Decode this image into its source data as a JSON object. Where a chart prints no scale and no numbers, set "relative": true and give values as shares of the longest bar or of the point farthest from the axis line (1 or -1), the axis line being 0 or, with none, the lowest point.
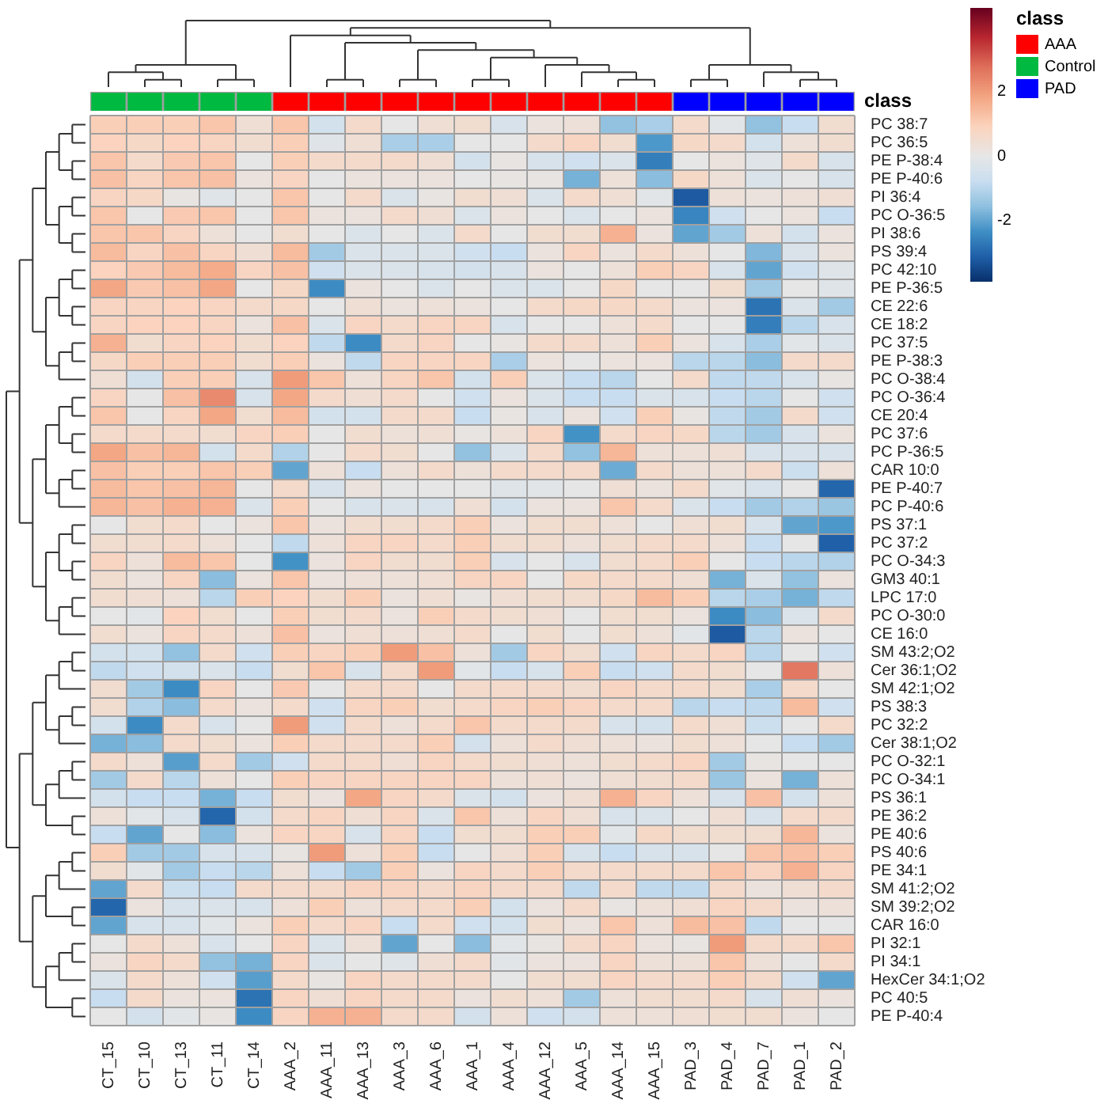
{
  "chart_data": [
    {
      "type": "bar",
      "stacked": true,
      "relative": true,
      "tick_labels": false,
      "ylabel": "class",
      "legend_title": "class",
      "legend": "top right",
      "categories": [
        null,
        null,
        null,
        null,
        null,
        null,
        null,
        null,
        null,
        null,
        null,
        null,
        null,
        null,
        null,
        null,
        null,
        null,
        null,
        null,
        null
      ],
      "series": [
        {
          "name": "AAA",
          "color": "#ff0000",
          "values": [
            null,
            null,
            null,
            null,
            null,
            1,
            1,
            1,
            1,
            1,
            1,
            1,
            1,
            1,
            1,
            1,
            null,
            null,
            null,
            null,
            null
          ]
        },
        {
          "name": "Control",
          "color": "#00b940",
          "values": [
            1,
            1,
            1,
            1,
            1,
            null,
            null,
            null,
            null,
            null,
            null,
            null,
            null,
            null,
            null,
            null,
            null,
            null,
            null,
            null,
            null
          ]
        },
        {
          "name": "PAD",
          "color": "#0000ff",
          "values": [
            null,
            null,
            null,
            null,
            null,
            null,
            null,
            null,
            null,
            null,
            null,
            null,
            null,
            null,
            null,
            null,
            1,
            1,
            1,
            1,
            1
          ]
        }
      ]
    },
    {
      "type": "heatmap",
      "categories": [
        "CT_15",
        "CT_10",
        "CT_13",
        "CT_11",
        "CT_14",
        "AAA_2",
        "AAA_11",
        "AAA_13",
        "AAA_3",
        "AAA_6",
        "AAA_1",
        "AAA_4",
        "AAA_12",
        "AAA_5",
        "AAA_14",
        "AAA_15",
        "PAD_3",
        "PAD_4",
        "PAD_7",
        "PAD_1",
        "PAD_2"
      ],
      "y_categories": [
        "PC 38:7",
        "PC 36:5",
        "PE P-38:4",
        "PE P-40:6",
        "PI 36:4",
        "PC O-36:5",
        "PI 38:6",
        "PS 39:4",
        "PC 42:10",
        "PE P-36:5",
        "CE 22:6",
        "CE 18:2",
        "PC 37:5",
        "PE P-38:3",
        "PC O-38:4",
        "PC O-36:4",
        "CE 20:4",
        "PC 37:6",
        "PC P-36:5",
        "CAR 10:0",
        "PE P-40:7",
        "PC P-40:6",
        "PS 37:1",
        "PC 37:2",
        "PC O-34:3",
        "GM3 40:1",
        "LPC 17:0",
        "PC O-30:0",
        "CE 16:0",
        "SM 43:2;O2",
        "Cer 36:1;O2",
        "SM 42:1;O2",
        "PS 38:3",
        "PC 32:2",
        "Cer 38:1;O2",
        "PC O-32:1",
        "PC O-34:1",
        "PS 36:1",
        "PE 36:2",
        "PE 40:6",
        "PS 40:6",
        "PE 34:1",
        "SM 41:2;O2",
        "SM 39:2;O2",
        "CAR 16:0",
        "PI 32:1",
        "PI 34:1",
        "HexCer 34:1;O2",
        "PC 40:5",
        "PE P-40:4"
      ],
      "cells": [
        [
          1,
          1,
          1,
          1.2,
          0.4,
          1.2,
          -0.5,
          0.6,
          0,
          0.4,
          0.5,
          -0.4,
          0.2,
          0.3,
          -1.5,
          -1.2,
          0.6,
          -0.1,
          -1.5,
          -0.8,
          0.5
        ],
        [
          0.9,
          0.7,
          0.9,
          0.8,
          0.5,
          1,
          -0.2,
          0.4,
          -1.2,
          -1.2,
          0,
          0,
          0.6,
          0.8,
          0.5,
          -2.2,
          0.7,
          0.6,
          -0.5,
          0.3,
          0.5
        ],
        [
          1.2,
          0.6,
          1.1,
          1.2,
          0,
          1,
          0.6,
          0.6,
          0.6,
          0.4,
          -0.5,
          0.1,
          -0.4,
          -0.6,
          -0.3,
          -2.6,
          0,
          0.2,
          -0.2,
          0.6,
          -0.4
        ],
        [
          1.3,
          0.8,
          1.2,
          1.3,
          0.2,
          0.8,
          0,
          0.2,
          0.2,
          0.2,
          0,
          0.1,
          0.1,
          -1.8,
          0.3,
          -1.6,
          0.7,
          0.3,
          -0.3,
          0,
          -0.4
        ],
        [
          0.8,
          0.7,
          0.1,
          -0.2,
          0,
          1.2,
          0,
          0.6,
          -0.3,
          0.1,
          0.5,
          0.4,
          -0.3,
          0.6,
          0.4,
          -0.1,
          -3.2,
          0.3,
          0.2,
          0.3,
          0.4
        ],
        [
          1.2,
          0,
          1.1,
          1.2,
          0,
          1.2,
          0.2,
          0.2,
          0.6,
          0.4,
          -0.3,
          0.2,
          0,
          -0.3,
          0,
          0.2,
          -2.5,
          -0.6,
          0,
          0.2,
          -0.8
        ],
        [
          1.2,
          1.2,
          0.8,
          0.3,
          0,
          0.5,
          0,
          -0.3,
          0,
          -0.3,
          0.6,
          0,
          0.5,
          0.5,
          1.6,
          0.2,
          -2,
          -1.3,
          0.3,
          -0.5,
          0.2
        ],
        [
          1.4,
          0.8,
          1.3,
          0.8,
          0.4,
          1.4,
          -1.3,
          -0.3,
          -0.3,
          -0.3,
          -0.6,
          -0.8,
          0.2,
          0.8,
          0.2,
          0.6,
          0.3,
          0,
          -1.7,
          -0.3,
          0.2
        ],
        [
          0.9,
          1.1,
          1.4,
          1.7,
          0.8,
          1.3,
          -0.6,
          -0.3,
          -0.3,
          -0.4,
          -0.5,
          -0.4,
          0.2,
          0,
          0.3,
          1,
          0.8,
          -0.4,
          -2,
          -0.6,
          -0.2
        ],
        [
          1.8,
          1.1,
          1.3,
          1.8,
          0,
          0.7,
          -2.4,
          0.2,
          0,
          -0.3,
          0,
          -0.3,
          -0.3,
          0,
          0.7,
          0,
          0,
          0.5,
          -1.3,
          0,
          -0.2
        ],
        [
          0.8,
          0.8,
          0.9,
          0.8,
          0.6,
          0.7,
          0,
          0.4,
          0.2,
          0.3,
          0.2,
          0,
          0.6,
          0.7,
          0.7,
          0.6,
          0.2,
          0.2,
          -2.8,
          -0.3,
          -1.3
        ],
        [
          0.8,
          0.9,
          0.9,
          0.8,
          0.2,
          1.3,
          -0.3,
          0.8,
          0.6,
          0.8,
          0.8,
          -0.4,
          0,
          0,
          0.3,
          0.6,
          0,
          0,
          -2.6,
          -1,
          -0.4
        ],
        [
          1.6,
          0.5,
          0.8,
          0.9,
          0.5,
          0.9,
          -0.9,
          -2.4,
          0.6,
          0.8,
          0,
          0.1,
          0.6,
          0.6,
          0.3,
          1,
          0.2,
          -0.4,
          -1.2,
          -0.1,
          -0.3
        ],
        [
          0.7,
          1,
          1,
          1,
          0.5,
          1,
          0.2,
          -0.9,
          0.8,
          0.8,
          0.8,
          -1.2,
          0.2,
          0,
          0.2,
          0.2,
          -1,
          -1,
          -1.6,
          0.6,
          0.6
        ],
        [
          0.4,
          -0.5,
          1,
          1,
          -0.4,
          2,
          1.2,
          0.3,
          0.8,
          1.2,
          -0.5,
          1,
          -0.3,
          -0.8,
          -1,
          0,
          0.6,
          -0.9,
          -0.9,
          -0.4,
          0.1
        ],
        [
          0.8,
          0,
          1.3,
          2.3,
          -0.4,
          1.8,
          0.6,
          0.4,
          0.6,
          0,
          -0.6,
          0.2,
          -0.3,
          -0.8,
          -0.8,
          -0.3,
          -0.4,
          -0.8,
          -1,
          0,
          -0.6
        ],
        [
          1.2,
          0,
          0.8,
          1.8,
          0.5,
          1.4,
          -0.5,
          -0.5,
          0.6,
          0.6,
          -0.8,
          0.1,
          -0.4,
          0.2,
          -0.6,
          1,
          0.1,
          -0.9,
          -1.3,
          0.6,
          -0.6
        ],
        [
          0.6,
          0.6,
          0.6,
          0.5,
          0.8,
          1,
          0,
          0.5,
          0.3,
          0.4,
          0.1,
          0.3,
          0.8,
          -2.3,
          0.6,
          0.8,
          0.7,
          -1,
          -1.3,
          -0.4,
          0.2
        ],
        [
          1.8,
          1.3,
          1.5,
          -0.5,
          0.6,
          -1.1,
          0,
          0.6,
          0.5,
          0,
          -1.5,
          -0.3,
          0.6,
          -1.5,
          1.5,
          0.3,
          0.3,
          0.4,
          -0.4,
          -0.4,
          -0.4
        ],
        [
          1.3,
          1,
          1,
          1.2,
          1,
          -2,
          0.3,
          -0.8,
          0.3,
          0.6,
          0.3,
          0.6,
          0.6,
          0.6,
          -1.9,
          0.6,
          0.3,
          0.3,
          0.6,
          -0.7,
          0.3
        ],
        [
          1.4,
          1.2,
          1.3,
          1.5,
          0,
          0.6,
          -0.4,
          0.2,
          0,
          0,
          0,
          -0.2,
          -0.1,
          0,
          0.4,
          0.2,
          0.6,
          -0.1,
          -0.4,
          0,
          -3
        ],
        [
          1.5,
          1.3,
          1.6,
          1.6,
          -0.3,
          1,
          0,
          -0.4,
          -0.3,
          -0.4,
          0.4,
          -0.5,
          0.2,
          0.2,
          1.2,
          0.6,
          -0.3,
          -0.8,
          -1.3,
          -1.1,
          -1.4
        ],
        [
          0,
          0.5,
          0.6,
          0,
          0.2,
          1.2,
          0.2,
          0.5,
          0.5,
          0.6,
          1,
          0.2,
          0.5,
          0.5,
          0.3,
          0,
          0.4,
          0.5,
          -0.4,
          -2,
          -2.2
        ],
        [
          0.5,
          0.5,
          0.6,
          0.3,
          0,
          -0.9,
          0.3,
          0.8,
          0.8,
          0.6,
          1,
          0.5,
          0.5,
          0.3,
          0.5,
          0.6,
          0.6,
          0.3,
          -0.8,
          0,
          -3.1
        ],
        [
          0.8,
          0.3,
          1.4,
          1.2,
          0,
          -2.3,
          0.2,
          0.8,
          0.5,
          0.5,
          1,
          -0.4,
          0,
          -0.4,
          0.5,
          0.6,
          1,
          0,
          -0.8,
          -1,
          -1.1
        ],
        [
          0.5,
          0.2,
          0.8,
          -1.6,
          0.2,
          1.2,
          0.2,
          0.3,
          0.3,
          0.4,
          0.8,
          0.8,
          0,
          0.7,
          0.6,
          0.6,
          0.4,
          -1.8,
          -0.3,
          -1.5,
          0.2
        ],
        [
          0.5,
          0.4,
          0.3,
          -1,
          1,
          0.9,
          0.5,
          1,
          0.2,
          0.4,
          0.1,
          0.4,
          0.5,
          0.5,
          0.7,
          1.4,
          1,
          -1,
          -1.2,
          -1.8,
          -0.9
        ],
        [
          0,
          -0.1,
          0.9,
          0.5,
          0,
          1,
          0.5,
          0.6,
          0.2,
          1,
          0.6,
          0.5,
          0.4,
          0,
          0.5,
          0.5,
          0.2,
          -2.4,
          -1.6,
          -0.3,
          0.6
        ],
        [
          0.5,
          0.2,
          0.8,
          0.6,
          0.3,
          1.3,
          0.2,
          0.4,
          0.3,
          0.4,
          0.6,
          0,
          0.5,
          0,
          0.5,
          0.3,
          -0.1,
          -3.2,
          -1,
          0.2,
          0
        ],
        [
          -0.5,
          -0.5,
          -1.5,
          0.6,
          -0.6,
          1,
          0.8,
          1,
          2,
          1.3,
          0.3,
          -1.3,
          0.8,
          0.5,
          -0.6,
          0.8,
          0.6,
          0.8,
          -1,
          0,
          -0.6
        ],
        [
          -0.9,
          -0.6,
          -0.5,
          -0.3,
          -0.8,
          0.5,
          1.2,
          -0.4,
          0.6,
          2,
          -0.1,
          -0.8,
          -0.4,
          1,
          -0.8,
          -0.6,
          0.6,
          0.5,
          0,
          2.6,
          0.3
        ],
        [
          0.5,
          -1.3,
          -2.4,
          0.8,
          0,
          1.1,
          0,
          0.6,
          0.6,
          0,
          0.6,
          0.6,
          0.6,
          0.5,
          0.8,
          0.6,
          0.6,
          0.5,
          -1.2,
          0.6,
          0
        ],
        [
          0.5,
          -1.1,
          -1.6,
          0.6,
          0.2,
          0.6,
          -0.6,
          0.8,
          1,
          0.5,
          0.6,
          0.8,
          1,
          0.8,
          0.6,
          0.6,
          -1,
          -0.8,
          -0.9,
          1.4,
          -0.6
        ],
        [
          -0.5,
          -2.4,
          0.6,
          -0.4,
          0,
          2,
          -0.6,
          0.6,
          0.3,
          0.6,
          1.2,
          0.6,
          0.6,
          0.6,
          -0.4,
          -0.5,
          0.6,
          0.4,
          -0.7,
          0,
          0.6
        ],
        [
          -1.8,
          -1.6,
          0.6,
          0.5,
          0.2,
          1,
          0.6,
          0.6,
          0.6,
          1,
          -0.5,
          0.3,
          0.6,
          0.4,
          0.3,
          0.2,
          0.5,
          0.3,
          0,
          -0.8,
          -1.3
        ],
        [
          0.6,
          0.3,
          -2.1,
          0.6,
          -1.3,
          -0.6,
          0.6,
          0.6,
          0.4,
          0.8,
          0.6,
          0.5,
          0.4,
          0.3,
          0.5,
          0.6,
          0.8,
          -1.3,
          0.1,
          0,
          0
        ],
        [
          -1.3,
          0.6,
          -1,
          0.3,
          0,
          1,
          0.8,
          0.8,
          0.8,
          0.8,
          0.8,
          0.3,
          0.4,
          0.2,
          0.4,
          0.5,
          0.6,
          -1.4,
          0.2,
          -1.8,
          0.3
        ],
        [
          -0.5,
          -0.8,
          -0.8,
          -1.8,
          -0.8,
          0.5,
          0.2,
          1.8,
          0.8,
          0.6,
          -0.3,
          -0.5,
          0.2,
          0.4,
          1.6,
          0.8,
          0.3,
          -0.4,
          1.3,
          -0.5,
          0.3
        ],
        [
          0.3,
          -0.1,
          -0.4,
          -3,
          -0.5,
          0.6,
          0.8,
          0.4,
          0.8,
          -0.3,
          1.2,
          0.3,
          0.8,
          0.4,
          -0.4,
          -0.3,
          0,
          0.4,
          -0.4,
          0.6,
          0.6
        ],
        [
          -0.8,
          -2,
          0,
          -1.6,
          0.2,
          0.8,
          0.8,
          -0.4,
          0.8,
          -0.8,
          0.5,
          0.5,
          1,
          1,
          -0.1,
          0.7,
          0.5,
          0.5,
          0.5,
          1.5,
          0.2
        ],
        [
          1,
          -1.3,
          -1.3,
          -0.4,
          -0.4,
          0.1,
          2,
          0.3,
          1,
          -0.8,
          0,
          0.4,
          1,
          -0.4,
          -0.8,
          -0.4,
          -0.4,
          0,
          1.2,
          1.3,
          1
        ],
        [
          0.5,
          -0.1,
          -1.3,
          -0.8,
          -1,
          0.3,
          -0.8,
          -1.3,
          1,
          0.2,
          0.8,
          0.6,
          1,
          0.6,
          0.6,
          0.6,
          0.6,
          1.2,
          0.8,
          1.6,
          0.8
        ],
        [
          -2,
          0.6,
          -0.7,
          -0.8,
          0.6,
          0.6,
          0.6,
          0.8,
          0.8,
          0.6,
          0.8,
          0.6,
          0.6,
          -0.9,
          0.6,
          -0.9,
          -0.9,
          0.6,
          0.2,
          0.4,
          0.6
        ],
        [
          -3,
          0.2,
          -0.4,
          -0.3,
          -0.4,
          0.3,
          1,
          0.3,
          0.6,
          0.6,
          1,
          -0.5,
          0.2,
          0.6,
          0.1,
          0.3,
          0.4,
          0.8,
          0.6,
          0.2,
          0.3
        ],
        [
          -2,
          -0.4,
          -0.4,
          -0.1,
          0.2,
          1,
          0.6,
          0.8,
          -0.8,
          0.6,
          -0.6,
          -0.5,
          0.5,
          0.2,
          1.2,
          0.3,
          1.4,
          1.3,
          -0.9,
          0,
          0
        ],
        [
          0,
          0.6,
          0.3,
          -0.4,
          0,
          0.8,
          -0.3,
          0.3,
          -2,
          0,
          -1.6,
          -0.1,
          0.1,
          0.6,
          0.8,
          0.2,
          0.1,
          2,
          0.6,
          0.6,
          1.2
        ],
        [
          0.2,
          0.8,
          0.6,
          -1.5,
          -1.8,
          0.8,
          -0.3,
          0,
          -0.2,
          0.4,
          0.6,
          -0.1,
          0.2,
          0.2,
          0.8,
          0.3,
          0.3,
          1.2,
          0.3,
          0,
          0.6
        ],
        [
          -0.3,
          0.6,
          0.3,
          -0.6,
          -2.1,
          0.6,
          0.1,
          0.8,
          0.6,
          0.6,
          0.6,
          0,
          0.5,
          0.5,
          0.8,
          0.6,
          0.6,
          1,
          0.6,
          -0.6,
          -2
        ],
        [
          -0.8,
          0.6,
          0.2,
          0.2,
          -2.8,
          0.8,
          0.4,
          0.8,
          0.6,
          0.6,
          0.2,
          0.5,
          0.3,
          -1.3,
          0.3,
          0.5,
          0.5,
          0.6,
          -0.4,
          0.4,
          0.2
        ],
        [
          0,
          -0.5,
          -0.1,
          0.1,
          -2.4,
          0.8,
          1.6,
          1.6,
          0.6,
          0.6,
          -0.5,
          0.3,
          -0.6,
          -0.5,
          0.3,
          0.3,
          0.4,
          0.5,
          0.5,
          0.2,
          0
        ]
      ],
      "clim": [
        -3.9,
        4.6
      ],
      "cticks": [
        -2,
        0,
        2
      ]
    }
  ]
}
